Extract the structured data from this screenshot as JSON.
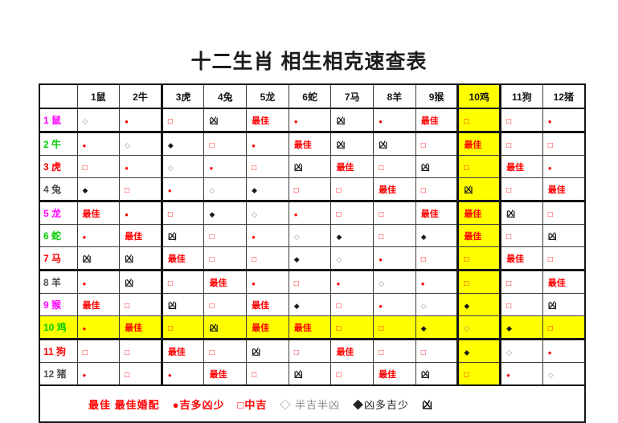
{
  "page": {
    "title": "十二生肖 相生相克速查表"
  },
  "chart_data": {
    "type": "table",
    "title": "十二生肖 相生相克速查表",
    "columns": [
      "1鼠",
      "2牛",
      "3虎",
      "4兔",
      "5龙",
      "6蛇",
      "7马",
      "8羊",
      "9猴",
      "10鸡",
      "11狗",
      "12猪"
    ],
    "row_labels": [
      "1 鼠",
      "2 牛",
      "3 虎",
      "4 兔",
      "5 龙",
      "6 蛇",
      "7 马",
      "8 羊",
      "9 猴",
      "10 鸡",
      "11 狗",
      "12 猪"
    ],
    "matrix": [
      [
        "◇",
        "●",
        "□",
        "凶",
        "最佳",
        "●",
        "凶",
        "●",
        "最佳",
        "□",
        "□",
        "●"
      ],
      [
        "●",
        "◇",
        "◆",
        "□",
        "●",
        "最佳",
        "凶",
        "凶",
        "□",
        "最佳",
        "□",
        "□"
      ],
      [
        "□",
        "●",
        "◇",
        "●",
        "□",
        "凶",
        "最佳",
        "□",
        "凶",
        "□",
        "最佳",
        "●"
      ],
      [
        "◆",
        "□",
        "●",
        "◇",
        "◆",
        "□",
        "□",
        "最佳",
        "□",
        "凶",
        "□",
        "最佳"
      ],
      [
        "最佳",
        "●",
        "□",
        "◆",
        "◇",
        "●",
        "□",
        "□",
        "最佳",
        "最佳",
        "凶",
        "□"
      ],
      [
        "●",
        "最佳",
        "凶",
        "□",
        "●",
        "◇",
        "◆",
        "□",
        "◆",
        "最佳",
        "□",
        "凶"
      ],
      [
        "凶",
        "凶",
        "最佳",
        "□",
        "□",
        "◆",
        "◇",
        "●",
        "□",
        "□",
        "最佳",
        "□"
      ],
      [
        "●",
        "凶",
        "□",
        "最佳",
        "●",
        "□",
        "●",
        "◇",
        "●",
        "□",
        "□",
        "最佳"
      ],
      [
        "最佳",
        "□",
        "凶",
        "□",
        "最佳",
        "◆",
        "□",
        "●",
        "◇",
        "◆",
        "□",
        "凶"
      ],
      [
        "●",
        "最佳",
        "□",
        "凶",
        "最佳",
        "最佳",
        "□",
        "□",
        "◆",
        "◇",
        "◆",
        "□"
      ],
      [
        "□",
        "□",
        "最佳",
        "□",
        "凶",
        "□",
        "最佳",
        "□",
        "□",
        "◆",
        "◇",
        "●"
      ],
      [
        "●",
        "□",
        "●",
        "最佳",
        "□",
        "凶",
        "□",
        "最佳",
        "凶",
        "□",
        "●",
        "◇"
      ]
    ],
    "highlight": {
      "row_index": 9,
      "col_index": 9,
      "color": "#ffff00"
    }
  },
  "styles": {
    "row_label_colors": [
      "#ff00ff",
      "#00cc00",
      "#ff0000",
      "#4d4d4d",
      "#ff00ff",
      "#00cc00",
      "#ff0000",
      "#4d4d4d",
      "#ff00ff",
      "#00cc00",
      "#ff0000",
      "#4d4d4d"
    ],
    "symbols": {
      "最佳": {
        "name": "best-match",
        "color": "#ff0000",
        "size": 11,
        "bold": true
      },
      "●": {
        "name": "mostly-good",
        "color": "#ff0000",
        "size": 8,
        "bold": false
      },
      "□": {
        "name": "medium-good",
        "color": "#ff0000",
        "size": 10,
        "bold": true
      },
      "◇": {
        "name": "half-good-half-bad",
        "color": "#8f8f8f",
        "size": 9,
        "bold": false
      },
      "◆": {
        "name": "mostly-bad",
        "color": "#1a1a1a",
        "size": 9,
        "bold": false
      },
      "凶": {
        "name": "bad",
        "color": "#1a1a1a",
        "size": 11,
        "bold": true
      }
    }
  },
  "legend": {
    "items": [
      {
        "text": "最佳 最佳婚配",
        "color": "#ff0000",
        "bold": true
      },
      {
        "text": "●吉多凶少",
        "color": "#ff0000",
        "bold": true
      },
      {
        "text": "□中吉",
        "color": "#ff0000",
        "bold": true
      },
      {
        "text": "◇ 半吉半凶",
        "color": "#8a8a8a",
        "bold": false
      },
      {
        "text": "◆凶多吉少",
        "color": "#222222",
        "bold": false
      },
      {
        "text": "凶",
        "color": "#111111",
        "bold": true
      }
    ]
  }
}
